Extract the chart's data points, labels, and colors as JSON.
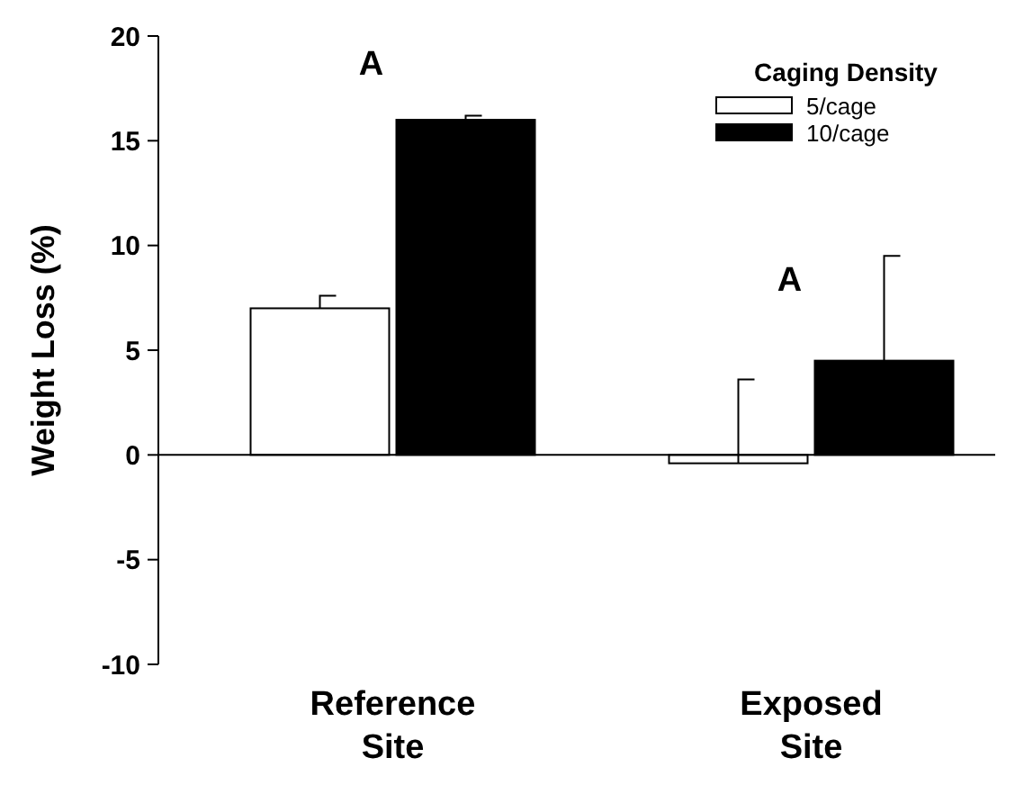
{
  "chart_data": {
    "type": "bar",
    "ylabel": "Weight Loss (%)",
    "legend_title": "Caging Density",
    "categories": [
      "Reference Site",
      "Exposed Site"
    ],
    "series": [
      {
        "name": "5/cage",
        "color": "#ffffff",
        "values": [
          7.0,
          -0.4
        ],
        "errors": [
          [
            7.0,
            7.6
          ],
          [
            -0.4,
            3.6
          ]
        ]
      },
      {
        "name": "10/cage",
        "color": "#000000",
        "values": [
          16.0,
          4.5
        ],
        "errors": [
          [
            16.0,
            16.2
          ],
          [
            4.5,
            9.5
          ]
        ]
      }
    ],
    "ylim": [
      -10,
      20
    ],
    "yticks": [
      -10,
      -5,
      0,
      5,
      10,
      15,
      20
    ],
    "legend": "top right",
    "annotations": [
      "A",
      "A"
    ]
  }
}
